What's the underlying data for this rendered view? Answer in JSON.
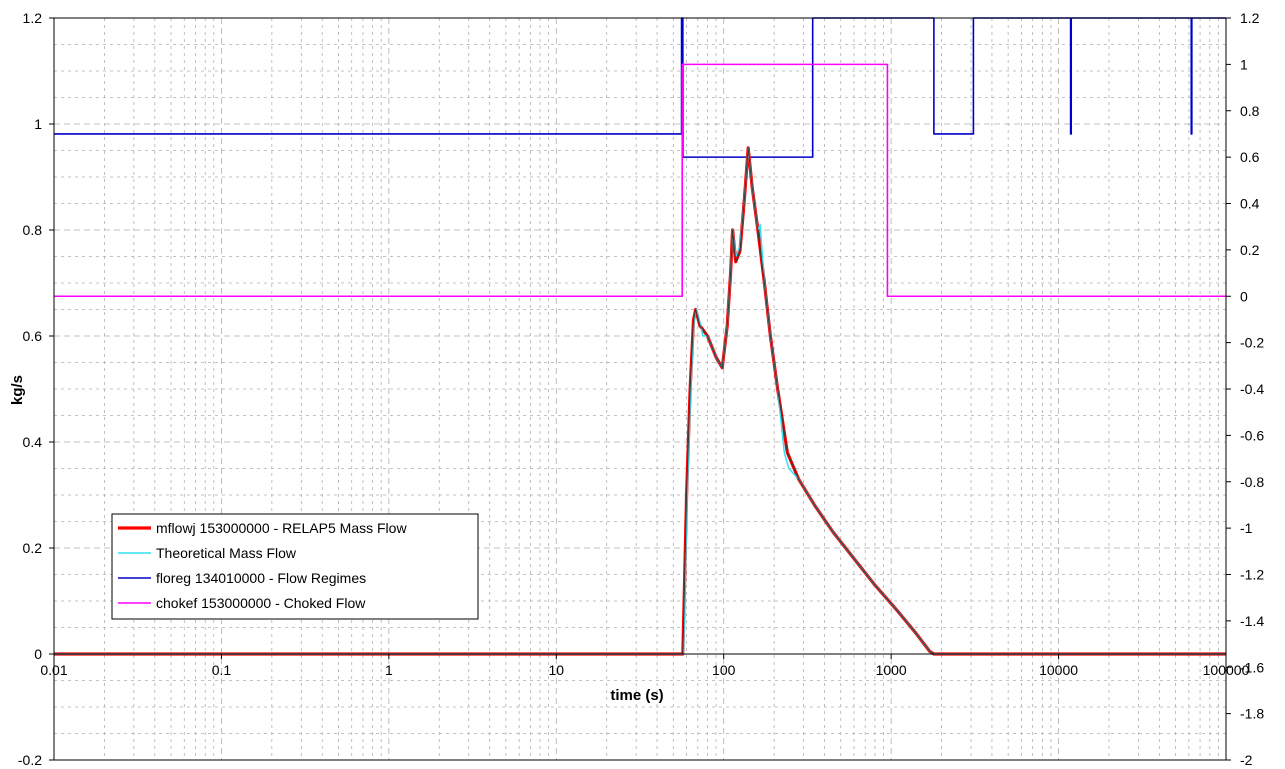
{
  "chart_data": {
    "type": "line",
    "title": "",
    "xlabel": "time (s)",
    "ylabel": "kg/s",
    "y2label": "",
    "x_scale": "log",
    "xlim": [
      0.01,
      100000
    ],
    "ylim": [
      -0.2,
      1.2
    ],
    "y2lim": [
      -2,
      1.2
    ],
    "x_tick_labels": [
      "0.01",
      "0.1",
      "1",
      "10",
      "100",
      "1000",
      "10000",
      "100000"
    ],
    "y_tick_labels": [
      "-0.2",
      "0",
      "0.2",
      "0.4",
      "0.6",
      "0.8",
      "1",
      "1.2"
    ],
    "y2_tick_labels": [
      "-2",
      "-1.8",
      "-1.6",
      "-1.4",
      "-1.2",
      "-1",
      "-0.8",
      "-0.6",
      "-0.4",
      "-0.2",
      "0",
      "0.2",
      "0.4",
      "0.6",
      "0.8",
      "1",
      "1.2"
    ],
    "grid": true,
    "legend_position": "lower-left",
    "series": [
      {
        "name": "mflowj 153000000 - RELAP5 Mass Flow",
        "axis": "left",
        "color": "#ff0000",
        "points": [
          [
            0.01,
            0
          ],
          [
            57,
            0
          ],
          [
            58,
            0.1
          ],
          [
            60,
            0.3
          ],
          [
            63,
            0.5
          ],
          [
            66,
            0.63
          ],
          [
            68,
            0.65
          ],
          [
            72,
            0.62
          ],
          [
            80,
            0.6
          ],
          [
            90,
            0.56
          ],
          [
            98,
            0.54
          ],
          [
            105,
            0.62
          ],
          [
            110,
            0.72
          ],
          [
            113,
            0.8
          ],
          [
            118,
            0.74
          ],
          [
            125,
            0.76
          ],
          [
            133,
            0.86
          ],
          [
            140,
            0.955
          ],
          [
            148,
            0.88
          ],
          [
            160,
            0.8
          ],
          [
            175,
            0.7
          ],
          [
            190,
            0.6
          ],
          [
            210,
            0.5
          ],
          [
            240,
            0.38
          ],
          [
            280,
            0.33
          ],
          [
            350,
            0.28
          ],
          [
            450,
            0.23
          ],
          [
            600,
            0.18
          ],
          [
            800,
            0.13
          ],
          [
            1100,
            0.08
          ],
          [
            1400,
            0.04
          ],
          [
            1700,
            0.005
          ],
          [
            1800,
            0
          ],
          [
            100000,
            0
          ]
        ]
      },
      {
        "name": "Theoretical Mass Flow",
        "axis": "left",
        "color": "#33e0f0",
        "points": [
          [
            0.01,
            0
          ],
          [
            57.5,
            0
          ],
          [
            58.5,
            0.1
          ],
          [
            60.5,
            0.3
          ],
          [
            63.5,
            0.5
          ],
          [
            66.5,
            0.63
          ],
          [
            68.5,
            0.65
          ],
          [
            73,
            0.62
          ],
          [
            75,
            0.6
          ],
          [
            80,
            0.6
          ],
          [
            90,
            0.56
          ],
          [
            98,
            0.54
          ],
          [
            105,
            0.62
          ],
          [
            110,
            0.72
          ],
          [
            113,
            0.8
          ],
          [
            118,
            0.75
          ],
          [
            125,
            0.77
          ],
          [
            133,
            0.86
          ],
          [
            140,
            0.955
          ],
          [
            148,
            0.88
          ],
          [
            160,
            0.8
          ],
          [
            165,
            0.81
          ],
          [
            175,
            0.7
          ],
          [
            190,
            0.6
          ],
          [
            210,
            0.5
          ],
          [
            230,
            0.38
          ],
          [
            245,
            0.35
          ],
          [
            280,
            0.33
          ],
          [
            350,
            0.28
          ],
          [
            450,
            0.23
          ],
          [
            600,
            0.18
          ],
          [
            800,
            0.13
          ],
          [
            1100,
            0.08
          ],
          [
            1400,
            0.04
          ],
          [
            1700,
            0.005
          ],
          [
            1800,
            0
          ],
          [
            100000,
            0
          ]
        ]
      },
      {
        "name": "floreg 134010000 - Flow Regimes",
        "axis": "right",
        "color": "#0000cc",
        "points": [
          [
            0.01,
            0.7
          ],
          [
            56,
            0.7
          ],
          [
            56,
            1.2
          ],
          [
            57,
            1.2
          ],
          [
            57,
            0.6
          ],
          [
            340,
            0.6
          ],
          [
            340,
            1.2
          ],
          [
            1800,
            1.2
          ],
          [
            1800,
            0.7
          ],
          [
            3100,
            0.7
          ],
          [
            3100,
            1.2
          ],
          [
            11800,
            1.2
          ],
          [
            11800,
            0.7
          ],
          [
            11900,
            0.7
          ],
          [
            11900,
            1.2
          ],
          [
            62000,
            1.2
          ],
          [
            62000,
            0.7
          ],
          [
            62500,
            0.7
          ],
          [
            62500,
            1.2
          ],
          [
            100000,
            1.2
          ]
        ]
      },
      {
        "name": "chokef 153000000 - Choked Flow",
        "axis": "right",
        "color": "#ff00ff",
        "points": [
          [
            0.01,
            0
          ],
          [
            56.5,
            0
          ],
          [
            56.5,
            1
          ],
          [
            950,
            1
          ],
          [
            950,
            0
          ],
          [
            100000,
            0
          ]
        ]
      }
    ]
  }
}
